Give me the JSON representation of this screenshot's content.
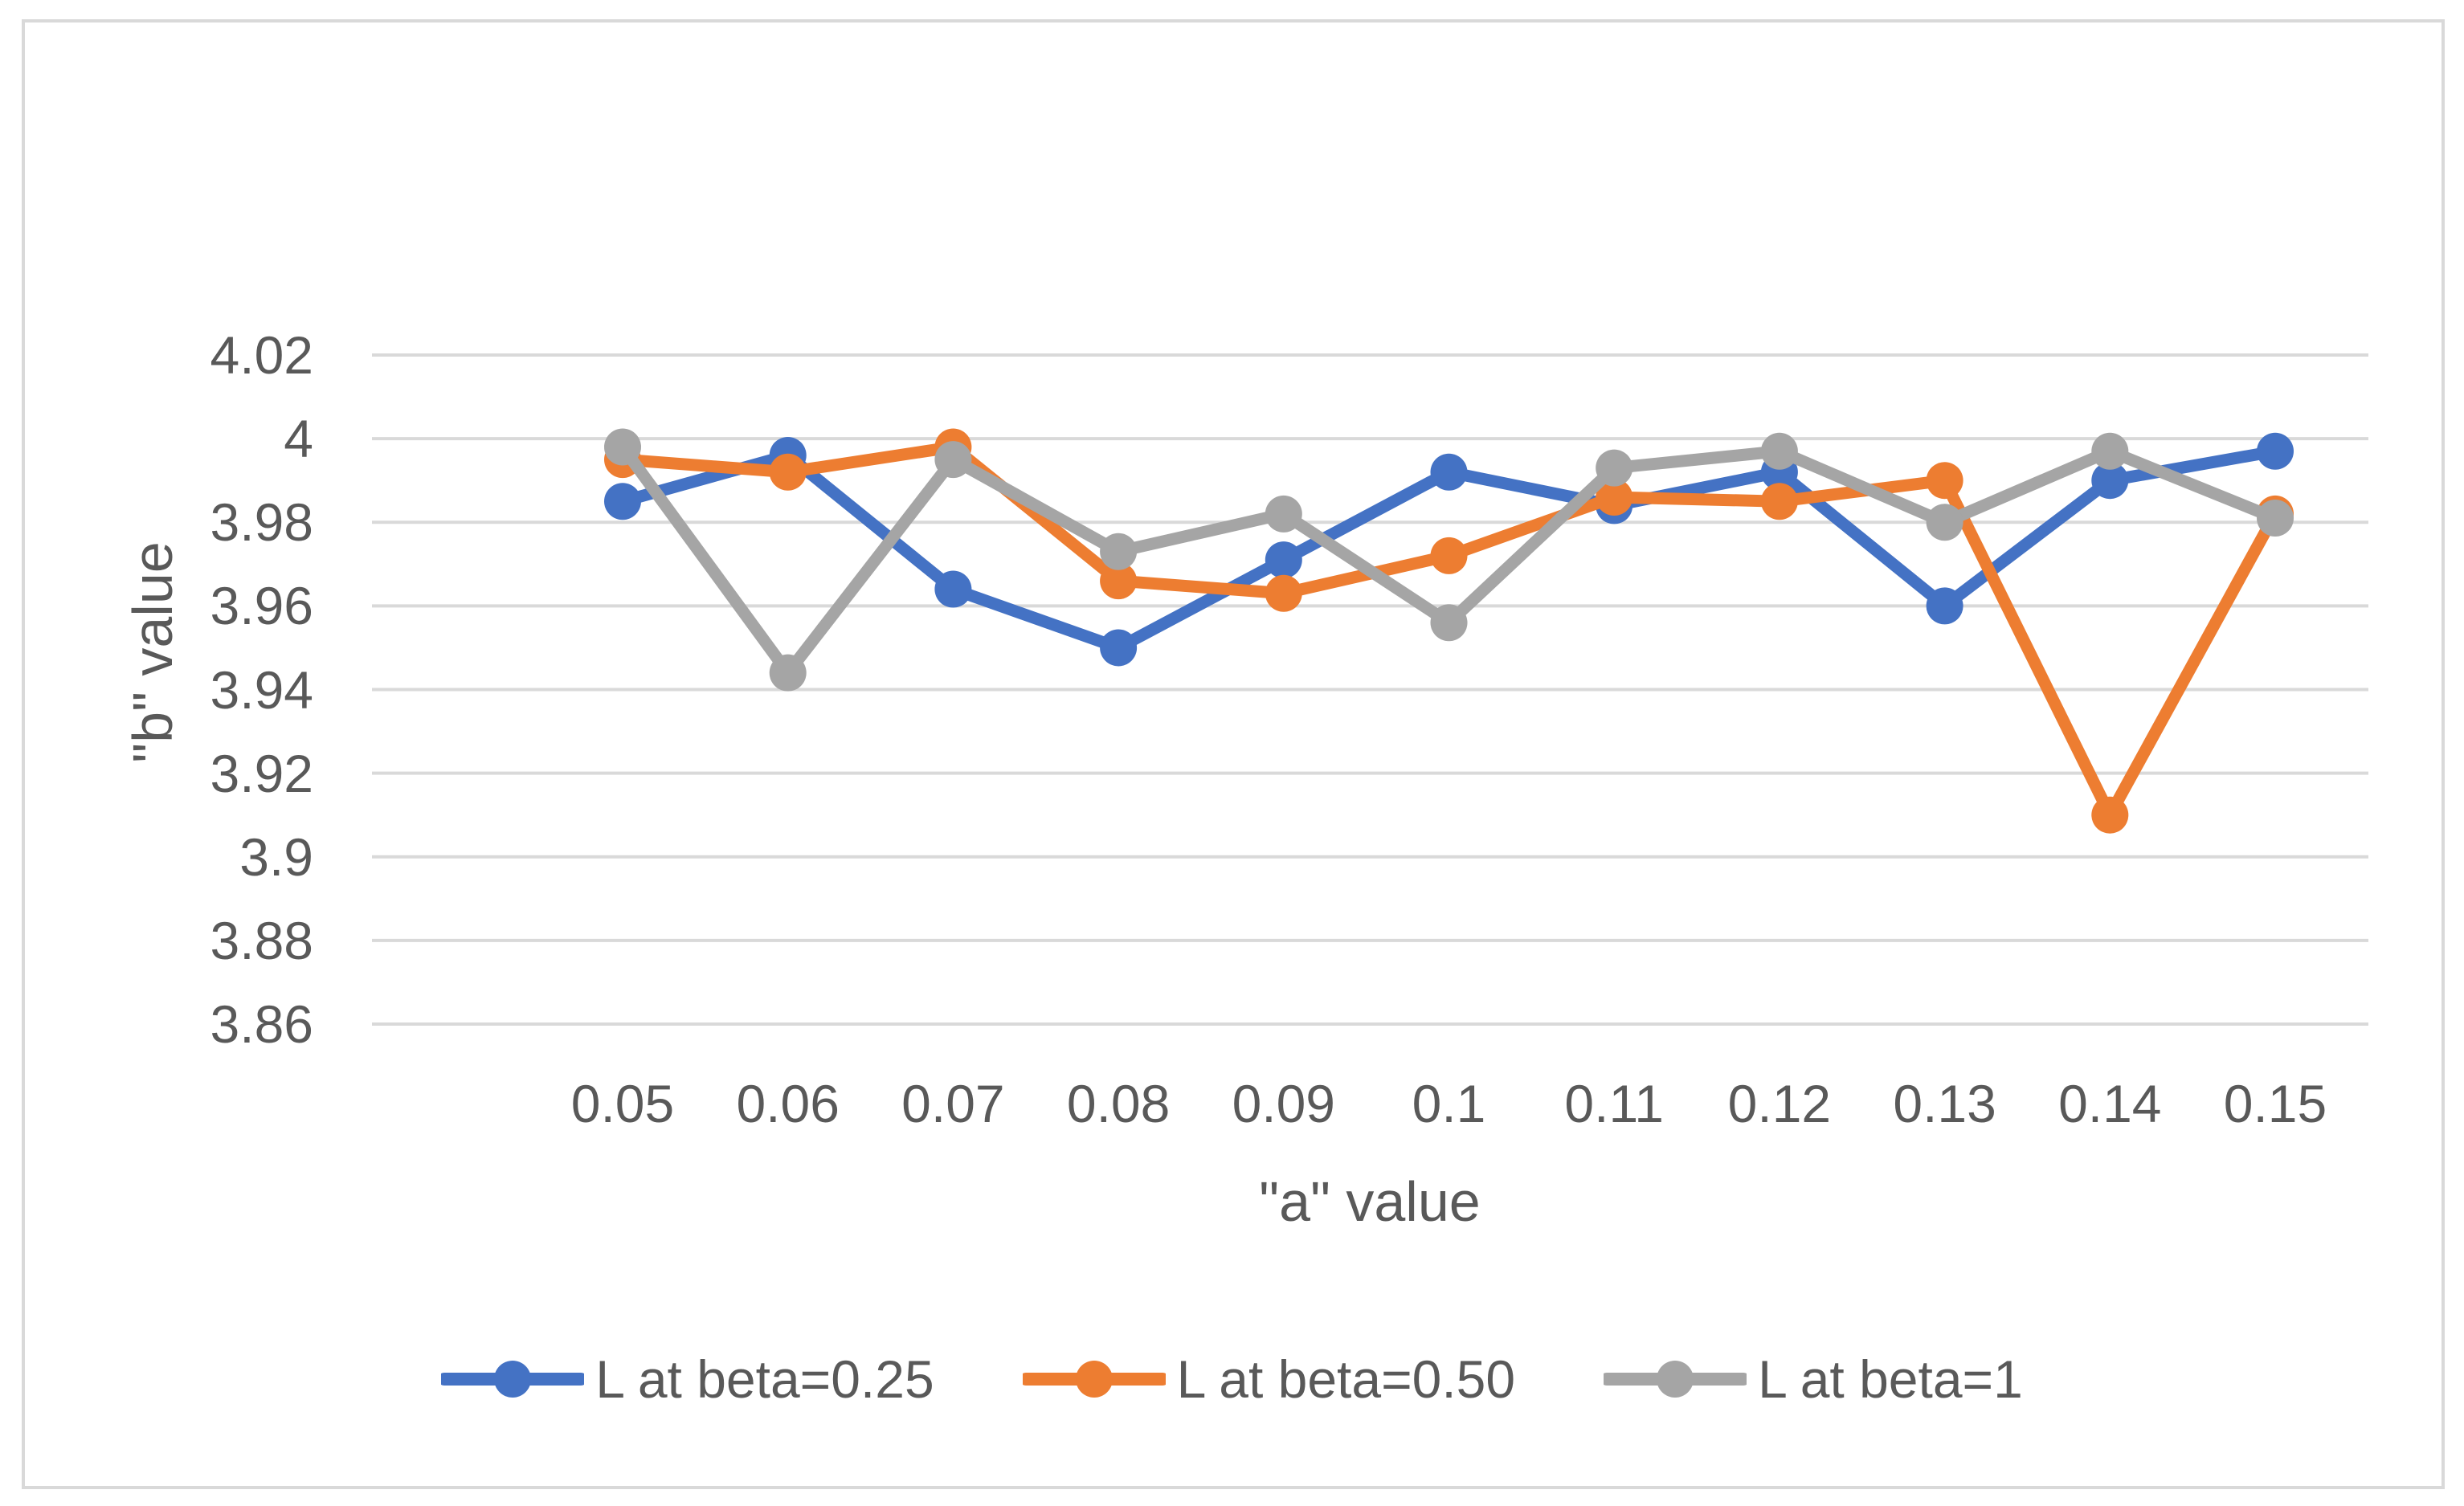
{
  "figure": {
    "background": "#FFFFFF",
    "border_color": "#D9D9D9",
    "text_color": "#595959"
  },
  "chart_data": {
    "type": "line",
    "title": "",
    "xlabel": "\"a\" value",
    "ylabel": "\"b\" value",
    "categories": [
      "0.05",
      "0.06",
      "0.07",
      "0.08",
      "0.09",
      "0.1",
      "0.11",
      "0.12",
      "0.13",
      "0.14",
      "0.15"
    ],
    "y_ticks": [
      "4.02",
      "4",
      "3.98",
      "3.96",
      "3.94",
      "3.92",
      "3.9",
      "3.88",
      "3.86"
    ],
    "y_tick_values": [
      4.02,
      4.0,
      3.98,
      3.96,
      3.94,
      3.92,
      3.9,
      3.88,
      3.86
    ],
    "ylim": [
      3.86,
      4.02
    ],
    "grid": true,
    "grid_color": "#D9D9D9",
    "legend_position": "bottom",
    "marker": "circle",
    "series": [
      {
        "name": "L at beta=0.25",
        "color": "#4472C4",
        "values": [
          3.985,
          3.996,
          3.964,
          3.95,
          3.971,
          3.992,
          3.984,
          3.992,
          3.96,
          3.99,
          3.997
        ]
      },
      {
        "name": "L at beta=0.50",
        "color": "#ED7D31",
        "values": [
          3.995,
          3.992,
          3.998,
          3.966,
          3.963,
          3.972,
          3.986,
          3.985,
          3.99,
          3.91,
          3.982
        ]
      },
      {
        "name": "L at beta=1",
        "color": "#A5A5A5",
        "values": [
          3.998,
          3.944,
          3.995,
          3.973,
          3.982,
          3.956,
          3.993,
          3.997,
          3.98,
          3.997,
          3.981
        ]
      }
    ]
  }
}
